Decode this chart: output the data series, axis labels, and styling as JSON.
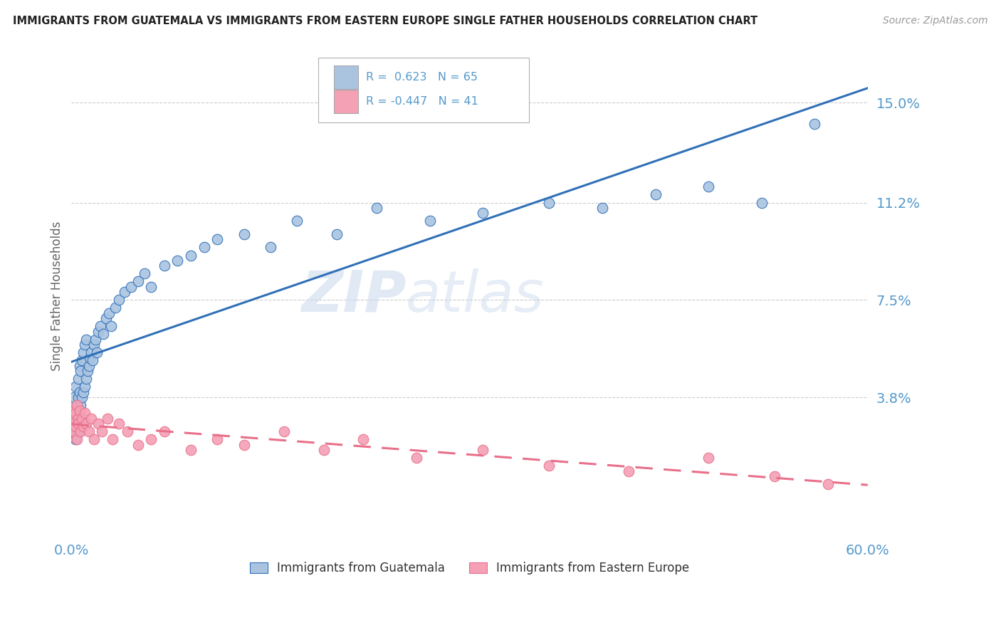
{
  "title": "IMMIGRANTS FROM GUATEMALA VS IMMIGRANTS FROM EASTERN EUROPE SINGLE FATHER HOUSEHOLDS CORRELATION CHART",
  "source": "Source: ZipAtlas.com",
  "ylabel": "Single Father Households",
  "xlim": [
    0.0,
    0.6
  ],
  "ylim": [
    -0.015,
    0.168
  ],
  "watermark_zip": "ZIP",
  "watermark_atlas": "atlas",
  "blue_color": "#aac4e0",
  "pink_color": "#f4a0b5",
  "blue_line_color": "#3070b8",
  "pink_line_color": "#e8708a",
  "grid_color": "#cccccc",
  "title_color": "#222222",
  "axis_label_color": "#5599cc",
  "blue_scatter_x": [
    0.001,
    0.001,
    0.002,
    0.002,
    0.002,
    0.003,
    0.003,
    0.003,
    0.004,
    0.004,
    0.005,
    0.005,
    0.005,
    0.006,
    0.006,
    0.006,
    0.007,
    0.007,
    0.008,
    0.008,
    0.009,
    0.009,
    0.01,
    0.01,
    0.011,
    0.011,
    0.012,
    0.013,
    0.014,
    0.015,
    0.016,
    0.017,
    0.018,
    0.019,
    0.02,
    0.022,
    0.024,
    0.026,
    0.028,
    0.03,
    0.033,
    0.036,
    0.04,
    0.045,
    0.05,
    0.055,
    0.06,
    0.07,
    0.08,
    0.09,
    0.1,
    0.11,
    0.13,
    0.15,
    0.17,
    0.2,
    0.23,
    0.27,
    0.31,
    0.36,
    0.4,
    0.44,
    0.48,
    0.52,
    0.56
  ],
  "blue_scatter_y": [
    0.028,
    0.033,
    0.025,
    0.035,
    0.038,
    0.022,
    0.03,
    0.042,
    0.028,
    0.032,
    0.025,
    0.038,
    0.045,
    0.03,
    0.04,
    0.05,
    0.035,
    0.048,
    0.038,
    0.052,
    0.04,
    0.055,
    0.042,
    0.058,
    0.045,
    0.06,
    0.048,
    0.05,
    0.053,
    0.055,
    0.052,
    0.058,
    0.06,
    0.055,
    0.063,
    0.065,
    0.062,
    0.068,
    0.07,
    0.065,
    0.072,
    0.075,
    0.078,
    0.08,
    0.082,
    0.085,
    0.08,
    0.088,
    0.09,
    0.092,
    0.095,
    0.098,
    0.1,
    0.095,
    0.105,
    0.1,
    0.11,
    0.105,
    0.108,
    0.112,
    0.11,
    0.115,
    0.118,
    0.112,
    0.142
  ],
  "pink_scatter_x": [
    0.001,
    0.001,
    0.002,
    0.002,
    0.003,
    0.003,
    0.004,
    0.004,
    0.005,
    0.005,
    0.006,
    0.007,
    0.008,
    0.009,
    0.01,
    0.011,
    0.013,
    0.015,
    0.017,
    0.02,
    0.023,
    0.027,
    0.031,
    0.036,
    0.042,
    0.05,
    0.06,
    0.07,
    0.09,
    0.11,
    0.13,
    0.16,
    0.19,
    0.22,
    0.26,
    0.31,
    0.36,
    0.42,
    0.48,
    0.53,
    0.57
  ],
  "pink_scatter_y": [
    0.03,
    0.028,
    0.033,
    0.025,
    0.032,
    0.027,
    0.035,
    0.022,
    0.03,
    0.028,
    0.033,
    0.025,
    0.03,
    0.027,
    0.032,
    0.028,
    0.025,
    0.03,
    0.022,
    0.028,
    0.025,
    0.03,
    0.022,
    0.028,
    0.025,
    0.02,
    0.022,
    0.025,
    0.018,
    0.022,
    0.02,
    0.025,
    0.018,
    0.022,
    0.015,
    0.018,
    0.012,
    0.01,
    0.015,
    0.008,
    0.005
  ],
  "ytick_positions": [
    0.038,
    0.075,
    0.112,
    0.15
  ],
  "ytick_labels": [
    "3.8%",
    "7.5%",
    "11.2%",
    "15.0%"
  ]
}
